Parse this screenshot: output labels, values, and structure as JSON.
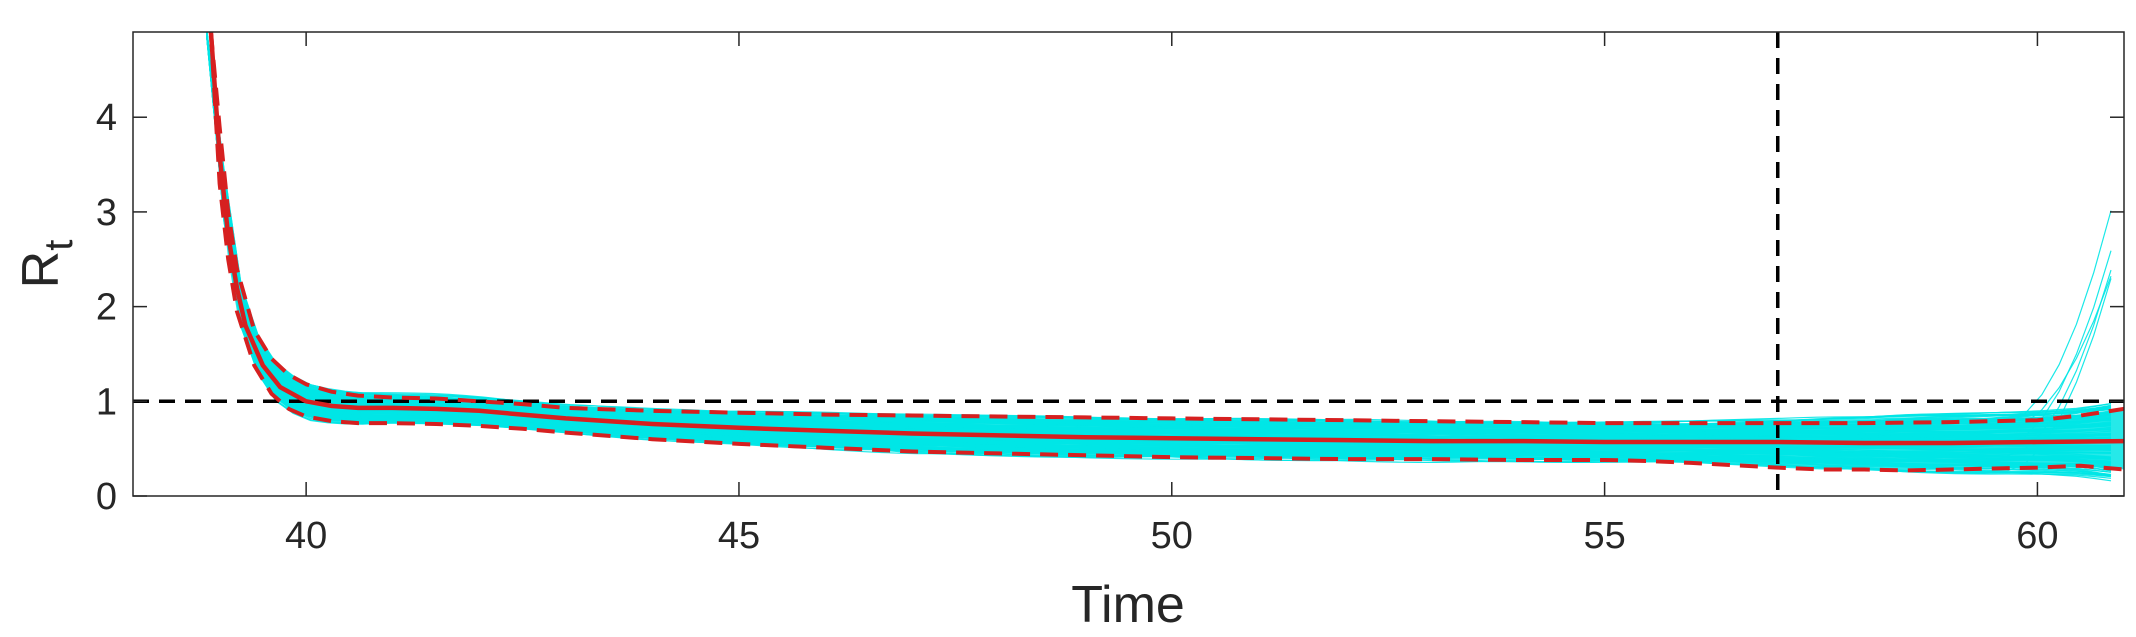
{
  "chart_data": {
    "type": "line",
    "title": "",
    "xlabel": "Time",
    "ylabel": "R",
    "ylabel_subscript": "t",
    "xlim": [
      38,
      61
    ],
    "ylim": [
      0,
      4.9
    ],
    "xticks": [
      40,
      45,
      50,
      55,
      60
    ],
    "yticks": [
      0,
      1,
      2,
      3,
      4
    ],
    "grid": false,
    "reference_lines": [
      {
        "orientation": "horizontal",
        "value": 1,
        "style": "dashed",
        "color": "#000000"
      },
      {
        "orientation": "vertical",
        "value": 57,
        "style": "dashed",
        "color": "#000000"
      }
    ],
    "ensemble": {
      "color": "#00e5e5",
      "x_end": 61
    },
    "series": [
      {
        "role": "mean",
        "style": "solid",
        "color": "#d62020",
        "x": [
          38.9,
          39.0,
          39.1,
          39.2,
          39.3,
          39.5,
          39.7,
          40.0,
          40.3,
          40.6,
          41.0,
          41.5,
          42.0,
          42.5,
          43.0,
          44.0,
          45.0,
          46.0,
          47.0,
          48.0,
          49.0,
          50.0,
          51.0,
          52.0,
          53.0,
          54.0,
          55.0,
          56.0,
          57.0,
          58.0,
          59.0,
          60.0,
          61.0
        ],
        "values": [
          4.9,
          3.6,
          2.75,
          2.2,
          1.8,
          1.38,
          1.15,
          1.0,
          0.95,
          0.93,
          0.93,
          0.92,
          0.9,
          0.86,
          0.82,
          0.76,
          0.72,
          0.69,
          0.66,
          0.64,
          0.62,
          0.61,
          0.6,
          0.59,
          0.58,
          0.58,
          0.57,
          0.57,
          0.57,
          0.56,
          0.56,
          0.57,
          0.58
        ]
      },
      {
        "role": "upper-bound",
        "style": "dashed",
        "color": "#d62020",
        "x": [
          38.9,
          39.0,
          39.1,
          39.2,
          39.4,
          39.6,
          39.8,
          40.0,
          40.3,
          40.6,
          41.0,
          41.5,
          42.0,
          42.5,
          43.0,
          44.0,
          45.0,
          46.0,
          47.0,
          48.0,
          49.0,
          50.0,
          51.0,
          52.0,
          53.0,
          54.0,
          55.0,
          56.0,
          57.0,
          58.0,
          59.0,
          60.0,
          60.5,
          61.0
        ],
        "values": [
          4.9,
          3.9,
          3.0,
          2.4,
          1.75,
          1.45,
          1.28,
          1.18,
          1.1,
          1.06,
          1.04,
          1.03,
          1.0,
          0.97,
          0.93,
          0.9,
          0.88,
          0.86,
          0.85,
          0.84,
          0.83,
          0.82,
          0.81,
          0.8,
          0.79,
          0.78,
          0.77,
          0.77,
          0.77,
          0.77,
          0.78,
          0.8,
          0.85,
          0.92
        ]
      },
      {
        "role": "lower-bound",
        "style": "dashed",
        "color": "#d62020",
        "x": [
          38.9,
          39.0,
          39.1,
          39.2,
          39.4,
          39.6,
          39.8,
          40.0,
          40.3,
          40.6,
          41.0,
          41.5,
          42.0,
          42.5,
          43.0,
          44.0,
          45.0,
          46.0,
          47.0,
          48.0,
          49.0,
          50.0,
          51.0,
          52.0,
          53.0,
          54.0,
          55.0,
          55.5,
          56.0,
          57.0,
          57.5,
          58.0,
          58.5,
          59.0,
          59.5,
          60.0,
          60.5,
          61.0
        ],
        "values": [
          4.9,
          3.3,
          2.5,
          1.95,
          1.38,
          1.08,
          0.92,
          0.84,
          0.79,
          0.77,
          0.77,
          0.76,
          0.74,
          0.71,
          0.67,
          0.6,
          0.55,
          0.51,
          0.47,
          0.45,
          0.43,
          0.41,
          0.4,
          0.39,
          0.39,
          0.38,
          0.38,
          0.37,
          0.35,
          0.3,
          0.28,
          0.28,
          0.27,
          0.28,
          0.29,
          0.3,
          0.32,
          0.28
        ]
      }
    ]
  }
}
